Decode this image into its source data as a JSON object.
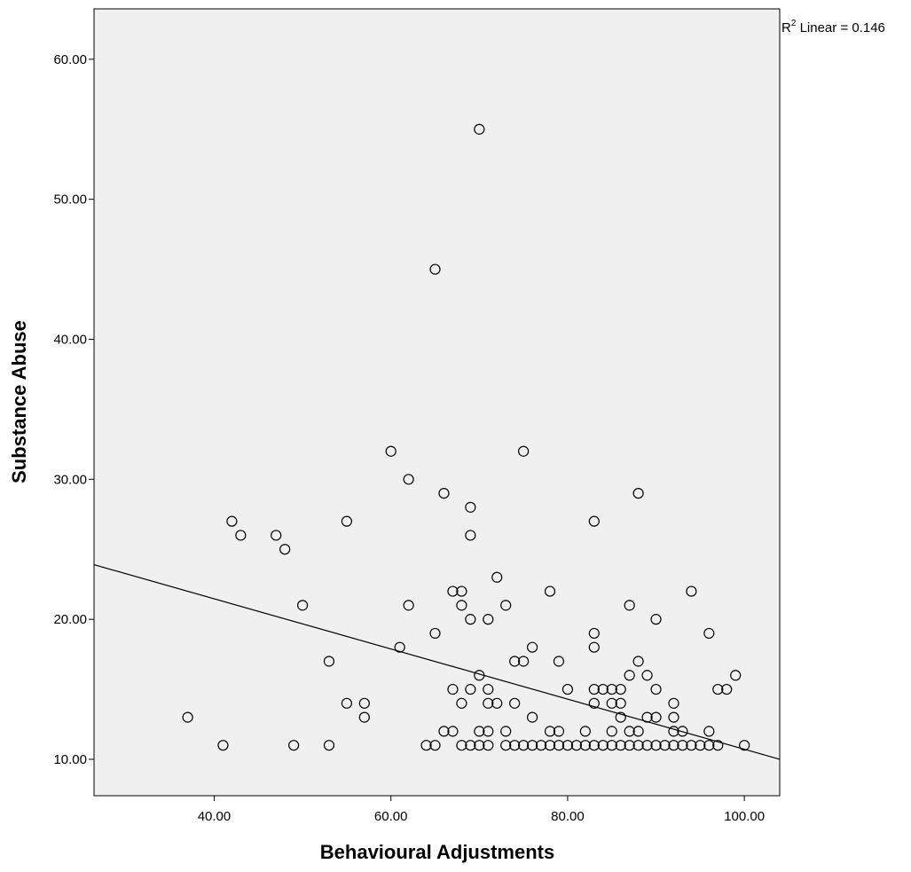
{
  "chart_data": {
    "type": "scatter",
    "title": "",
    "xlabel": "Behavioural Adjustments",
    "ylabel": "Substance Abuse",
    "xlim": [
      26.4,
      104
    ],
    "ylim": [
      7.4,
      63.6
    ],
    "xticks": [
      40,
      60,
      80,
      100
    ],
    "xtick_labels": [
      "40.00",
      "60.00",
      "80.00",
      "100.00"
    ],
    "yticks": [
      10,
      20,
      30,
      40,
      50,
      60
    ],
    "ytick_labels": [
      "10.00",
      "20.00",
      "30.00",
      "40.00",
      "50.00",
      "60.00"
    ],
    "grid": false,
    "background_color": "#f0f0f0",
    "marker": "open-circle",
    "fit_line": {
      "type": "linear",
      "start": [
        26.4,
        23.9
      ],
      "end": [
        104,
        10.0
      ],
      "label": "R² Linear = 0.146",
      "label_base": "R",
      "label_sup": "2",
      "label_rest": " Linear = 0.146"
    },
    "points": [
      [
        37,
        13
      ],
      [
        41,
        11
      ],
      [
        42,
        27
      ],
      [
        43,
        26
      ],
      [
        47,
        26
      ],
      [
        48,
        25
      ],
      [
        49,
        11
      ],
      [
        50,
        21
      ],
      [
        53,
        17
      ],
      [
        53,
        11
      ],
      [
        55,
        27
      ],
      [
        55,
        14
      ],
      [
        57,
        14
      ],
      [
        57,
        13
      ],
      [
        60,
        32
      ],
      [
        61,
        18
      ],
      [
        62,
        30
      ],
      [
        62,
        21
      ],
      [
        64,
        11
      ],
      [
        65,
        45
      ],
      [
        65,
        19
      ],
      [
        65,
        11
      ],
      [
        66,
        29
      ],
      [
        66,
        12
      ],
      [
        67,
        22
      ],
      [
        67,
        15
      ],
      [
        67,
        12
      ],
      [
        68,
        22
      ],
      [
        68,
        21
      ],
      [
        68,
        14
      ],
      [
        68,
        11
      ],
      [
        69,
        28
      ],
      [
        69,
        26
      ],
      [
        69,
        20
      ],
      [
        69,
        15
      ],
      [
        69,
        11
      ],
      [
        70,
        55
      ],
      [
        70,
        16
      ],
      [
        70,
        12
      ],
      [
        70,
        11
      ],
      [
        71,
        20
      ],
      [
        71,
        15
      ],
      [
        71,
        14
      ],
      [
        71,
        12
      ],
      [
        71,
        11
      ],
      [
        72,
        23
      ],
      [
        72,
        14
      ],
      [
        73,
        21
      ],
      [
        73,
        12
      ],
      [
        73,
        11
      ],
      [
        74,
        17
      ],
      [
        74,
        14
      ],
      [
        74,
        11
      ],
      [
        75,
        32
      ],
      [
        75,
        17
      ],
      [
        75,
        11
      ],
      [
        76,
        18
      ],
      [
        76,
        13
      ],
      [
        76,
        11
      ],
      [
        77,
        11
      ],
      [
        78,
        22
      ],
      [
        78,
        12
      ],
      [
        78,
        11
      ],
      [
        79,
        17
      ],
      [
        79,
        12
      ],
      [
        79,
        11
      ],
      [
        80,
        15
      ],
      [
        80,
        11
      ],
      [
        81,
        11
      ],
      [
        82,
        12
      ],
      [
        82,
        11
      ],
      [
        83,
        27
      ],
      [
        83,
        19
      ],
      [
        83,
        18
      ],
      [
        83,
        15
      ],
      [
        83,
        14
      ],
      [
        83,
        11
      ],
      [
        84,
        15
      ],
      [
        84,
        11
      ],
      [
        85,
        15
      ],
      [
        85,
        14
      ],
      [
        85,
        12
      ],
      [
        85,
        11
      ],
      [
        86,
        15
      ],
      [
        86,
        14
      ],
      [
        86,
        13
      ],
      [
        86,
        11
      ],
      [
        87,
        21
      ],
      [
        87,
        16
      ],
      [
        87,
        12
      ],
      [
        87,
        11
      ],
      [
        88,
        29
      ],
      [
        88,
        17
      ],
      [
        88,
        12
      ],
      [
        88,
        11
      ],
      [
        89,
        16
      ],
      [
        89,
        13
      ],
      [
        89,
        11
      ],
      [
        90,
        20
      ],
      [
        90,
        15
      ],
      [
        90,
        13
      ],
      [
        90,
        11
      ],
      [
        91,
        11
      ],
      [
        92,
        14
      ],
      [
        92,
        13
      ],
      [
        92,
        12
      ],
      [
        92,
        11
      ],
      [
        93,
        12
      ],
      [
        93,
        11
      ],
      [
        94,
        22
      ],
      [
        94,
        11
      ],
      [
        95,
        11
      ],
      [
        96,
        19
      ],
      [
        96,
        12
      ],
      [
        96,
        11
      ],
      [
        97,
        15
      ],
      [
        97,
        11
      ],
      [
        98,
        15
      ],
      [
        99,
        16
      ],
      [
        100,
        11
      ]
    ]
  }
}
